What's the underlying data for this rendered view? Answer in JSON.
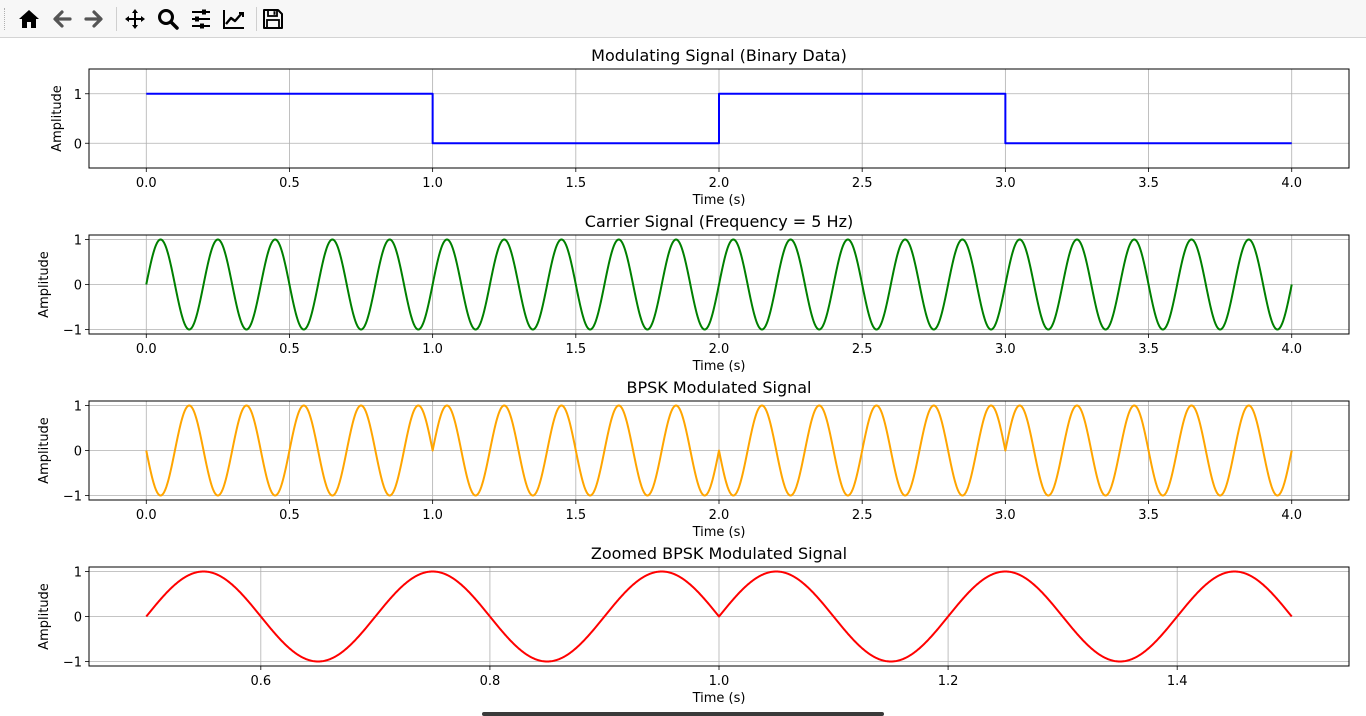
{
  "toolbar": {
    "buttons": [
      {
        "name": "home-button",
        "icon": "home-icon"
      },
      {
        "name": "back-button",
        "icon": "arrow-left-icon"
      },
      {
        "name": "forward-button",
        "icon": "arrow-right-icon"
      },
      {
        "name": "pan-button",
        "icon": "move-icon"
      },
      {
        "name": "zoom-button",
        "icon": "zoom-icon"
      },
      {
        "name": "configure-subplots-button",
        "icon": "sliders-icon"
      },
      {
        "name": "edit-axis-button",
        "icon": "line-chart-icon"
      },
      {
        "name": "save-button",
        "icon": "save-icon"
      }
    ]
  },
  "colors": {
    "modulating": "#0000ff",
    "carrier": "#008000",
    "bpsk": "#ffa500",
    "zoomed": "#ff0000",
    "grid": "#b0b0b0"
  },
  "chart_data": [
    {
      "type": "line",
      "title": "Modulating Signal (Binary Data)",
      "xlabel": "Time (s)",
      "ylabel": "Amplitude",
      "xlim": [
        -0.2,
        4.2
      ],
      "ylim": [
        -0.5,
        1.5
      ],
      "xticks": [
        "0.0",
        "0.5",
        "1.0",
        "1.5",
        "2.0",
        "2.5",
        "3.0",
        "3.5",
        "4.0"
      ],
      "yticks": [
        "0",
        "1"
      ],
      "grid": true,
      "series": [
        {
          "kind": "step",
          "color": "#0000ff",
          "bits": [
            1,
            0,
            1,
            0
          ],
          "x_range": [
            0,
            4
          ]
        }
      ]
    },
    {
      "type": "line",
      "title": "Carrier Signal (Frequency = 5 Hz)",
      "xlabel": "Time (s)",
      "ylabel": "Amplitude",
      "xlim": [
        -0.2,
        4.2
      ],
      "ylim": [
        -1.1,
        1.1
      ],
      "xticks": [
        "0.0",
        "0.5",
        "1.0",
        "1.5",
        "2.0",
        "2.5",
        "3.0",
        "3.5",
        "4.0"
      ],
      "yticks": [
        "1",
        "0",
        "−1"
      ],
      "grid": true,
      "series": [
        {
          "kind": "sine",
          "color": "#008000",
          "frequency": 5,
          "x_range": [
            0,
            4
          ]
        }
      ]
    },
    {
      "type": "line",
      "title": "BPSK Modulated Signal",
      "xlabel": "Time (s)",
      "ylabel": "Amplitude",
      "xlim": [
        -0.2,
        4.2
      ],
      "ylim": [
        -1.1,
        1.1
      ],
      "xticks": [
        "0.0",
        "0.5",
        "1.0",
        "1.5",
        "2.0",
        "2.5",
        "3.0",
        "3.5",
        "4.0"
      ],
      "yticks": [
        "1",
        "0",
        "−1"
      ],
      "grid": true,
      "series": [
        {
          "kind": "bpsk",
          "color": "#ffa500",
          "frequency": 5,
          "bits": [
            1,
            0,
            1,
            0
          ],
          "x_range": [
            0,
            4
          ]
        }
      ]
    },
    {
      "type": "line",
      "title": "Zoomed BPSK Modulated Signal",
      "xlabel": "Time (s)",
      "ylabel": "Amplitude",
      "xlim": [
        0.45,
        1.55
      ],
      "ylim": [
        -1.1,
        1.1
      ],
      "xticks": [
        "0.6",
        "0.8",
        "1.0",
        "1.2",
        "1.4"
      ],
      "yticks": [
        "1",
        "0",
        "−1"
      ],
      "grid": true,
      "series": [
        {
          "kind": "bpsk",
          "color": "#ff0000",
          "frequency": 5,
          "bits": [
            1,
            0,
            1,
            0
          ],
          "x_range": [
            0.5,
            1.5
          ]
        }
      ]
    }
  ]
}
